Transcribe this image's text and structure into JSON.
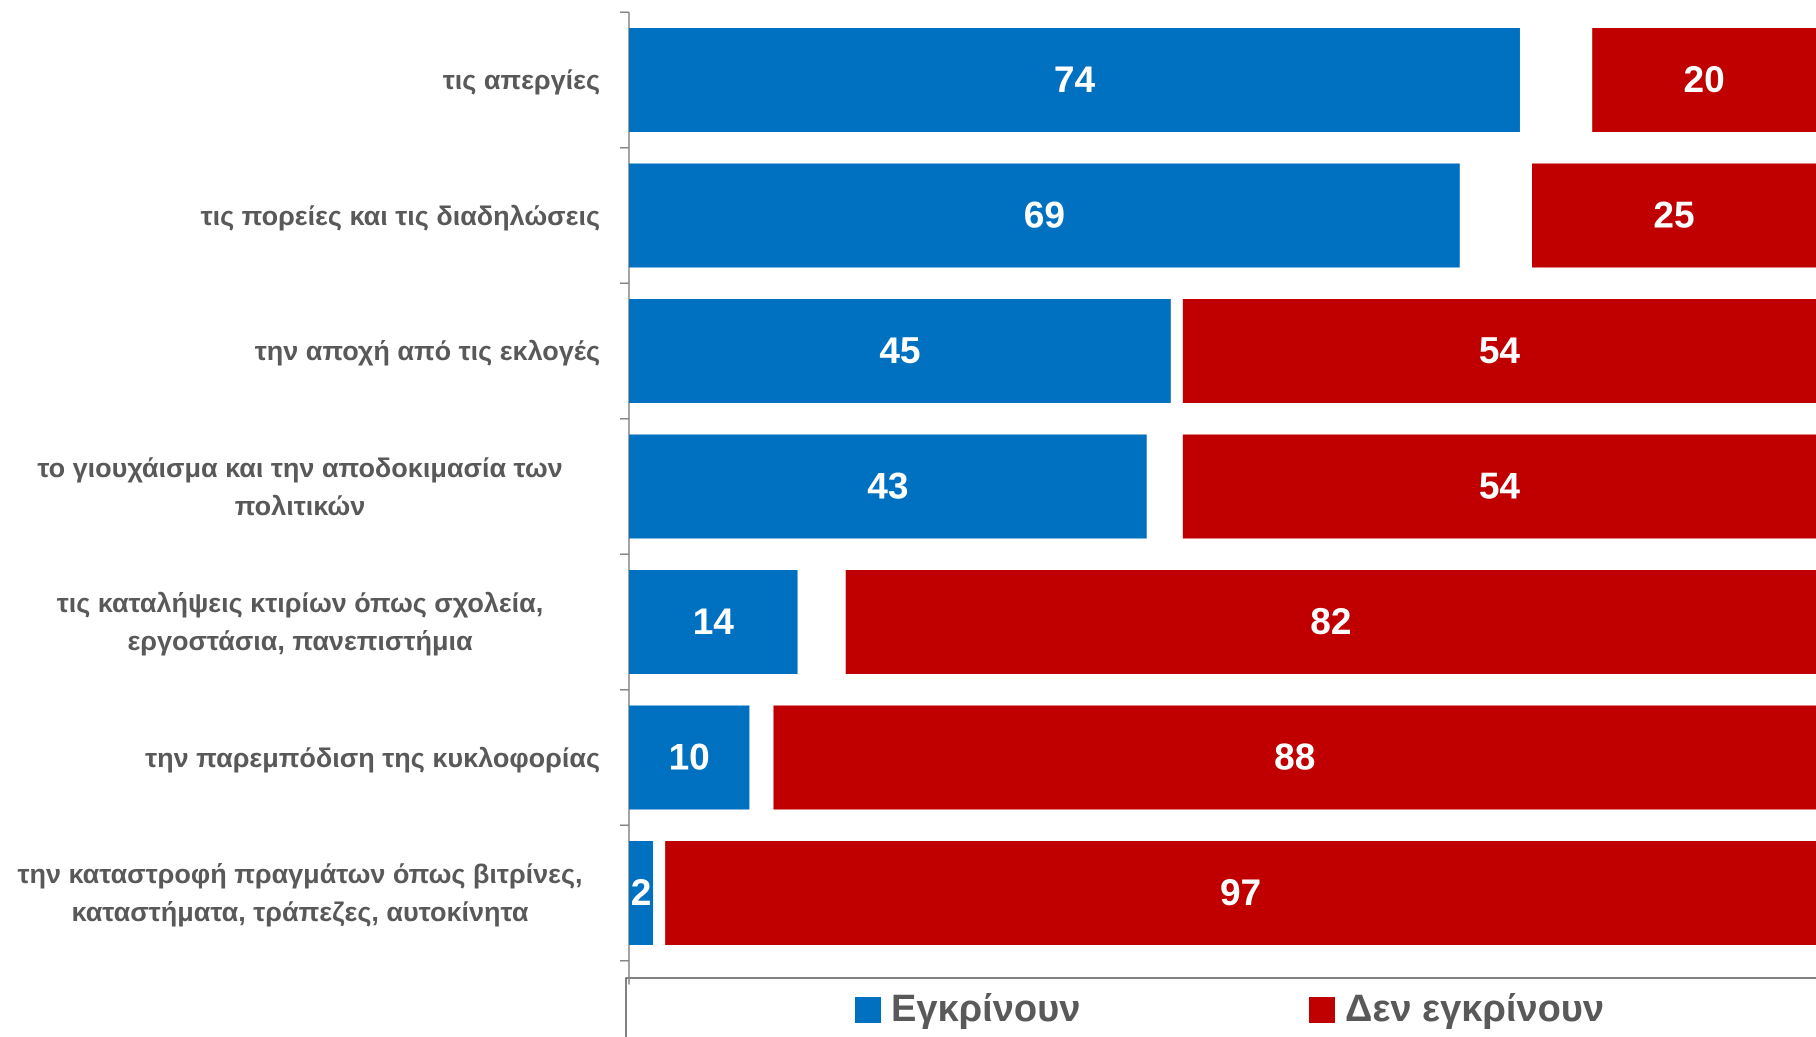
{
  "chart_data": {
    "type": "bar",
    "categories": [
      "τις απεργίες",
      "τις πορείες και τις διαδηλώσεις",
      "την αποχή από τις εκλογές",
      "το γιουχάισμα και την αποδοκιμασία των πολιτικών",
      "τις καταλήψεις κτιρίων όπως σχολεία, εργοστάσια, πανεπιστήμια",
      "την παρεμπόδιση της κυκλοφορίας",
      "την καταστροφή πραγμάτων όπως βιτρίνες, καταστήματα, τράπεζες, αυτοκίνητα"
    ],
    "series": [
      {
        "name": "Εγκρίνουν",
        "color": "#0070c0",
        "values": [
          74,
          69,
          45,
          43,
          14,
          10,
          2
        ]
      },
      {
        "name": "Δεν εγκρίνουν",
        "color": "#c00000",
        "values": [
          20,
          25,
          54,
          54,
          82,
          88,
          97
        ]
      }
    ],
    "xlim": [
      0,
      100
    ]
  }
}
